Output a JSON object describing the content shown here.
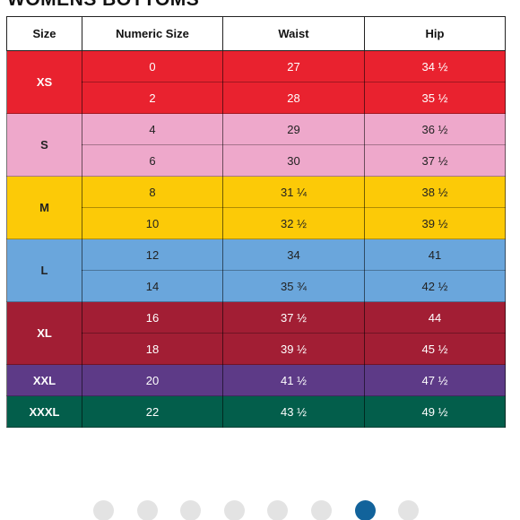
{
  "title": "WOMENS BOTTOMS",
  "table": {
    "headers": [
      "Size",
      "Numeric Size",
      "Waist",
      "Hip"
    ],
    "groups": [
      {
        "size": "XS",
        "bg": "#e9222f",
        "fg": "#ffffff",
        "rows": [
          [
            "0",
            "27",
            "34 ½"
          ],
          [
            "2",
            "28",
            "35 ½"
          ]
        ]
      },
      {
        "size": "S",
        "bg": "#eea8cb",
        "fg": "#222222",
        "rows": [
          [
            "4",
            "29",
            "36 ½"
          ],
          [
            "6",
            "30",
            "37 ½"
          ]
        ]
      },
      {
        "size": "M",
        "bg": "#fcca07",
        "fg": "#222222",
        "rows": [
          [
            "8",
            "31 ¼",
            "38 ½"
          ],
          [
            "10",
            "32 ½",
            "39 ½"
          ]
        ]
      },
      {
        "size": "L",
        "bg": "#6aa6dc",
        "fg": "#222222",
        "rows": [
          [
            "12",
            "34",
            "41"
          ],
          [
            "14",
            "35 ¾",
            "42 ½"
          ]
        ]
      },
      {
        "size": "XL",
        "bg": "#a21e34",
        "fg": "#ffffff",
        "rows": [
          [
            "16",
            "37 ½",
            "44"
          ],
          [
            "18",
            "39 ½",
            "45 ½"
          ]
        ]
      },
      {
        "size": "XXL",
        "bg": "#5d3a87",
        "fg": "#ffffff",
        "rows": [
          [
            "20",
            "41 ½",
            "47 ½"
          ]
        ]
      },
      {
        "size": "XXXL",
        "bg": "#035e4b",
        "fg": "#ffffff",
        "rows": [
          [
            "22",
            "43 ½",
            "49 ½"
          ]
        ]
      }
    ]
  },
  "pagination": {
    "count": 8,
    "active_index": 6,
    "active_color": "#12639b",
    "inactive_color": "#e3e3e3"
  }
}
